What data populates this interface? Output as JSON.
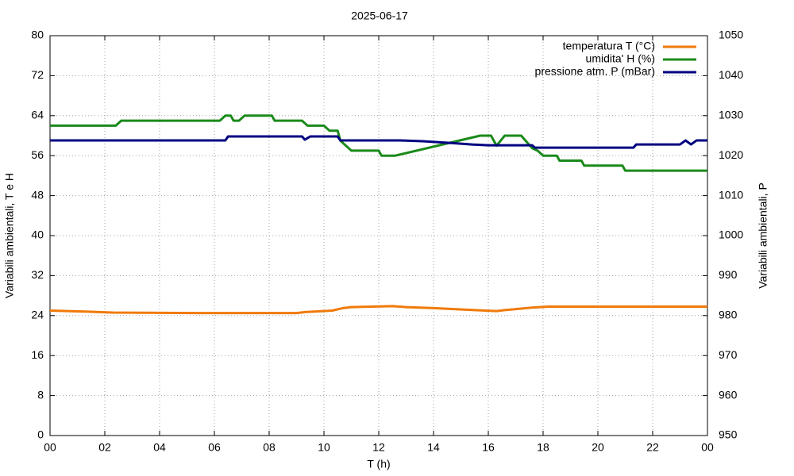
{
  "chart_data": {
    "type": "line",
    "title": "2025-06-17",
    "x_label": "T (h)",
    "y_label": "Variabili ambientali, T e H",
    "y2_label": "Variabili ambientali, P",
    "xlim": [
      0,
      24
    ],
    "xticks": [
      {
        "value": 0,
        "label": "00"
      },
      {
        "value": 2,
        "label": "02"
      },
      {
        "value": 4,
        "label": "04"
      },
      {
        "value": 6,
        "label": "06"
      },
      {
        "value": 8,
        "label": "08"
      },
      10,
      12,
      14,
      16,
      18,
      20,
      22,
      {
        "value": 24,
        "label": "00"
      }
    ],
    "ylim": [
      0,
      80
    ],
    "yticks": [
      0,
      8,
      16,
      24,
      32,
      40,
      48,
      56,
      64,
      72,
      80
    ],
    "y2lim": [
      950,
      1050
    ],
    "y2ticks": [
      950,
      960,
      970,
      980,
      990,
      1000,
      1010,
      1020,
      1030,
      1040,
      1050
    ],
    "grid": true,
    "legend": "top-right",
    "series": [
      {
        "name": "temperatura T (°C)",
        "color": "#f07a0a",
        "x": [
          0,
          1.3,
          2.3,
          5.4,
          9.0,
          9.3,
          10.3,
          10.7,
          11.0,
          12.5,
          13.0,
          14.0,
          15.5,
          16.3,
          16.6,
          17.6,
          18.2,
          24
        ],
        "values": [
          25.0,
          24.8,
          24.6,
          24.5,
          24.5,
          24.7,
          25.0,
          25.5,
          25.7,
          25.9,
          25.7,
          25.5,
          25.1,
          24.9,
          25.1,
          25.6,
          25.8,
          25.8
        ]
      },
      {
        "name": "umidita' H (%)",
        "color": "#1a8a1a",
        "x": [
          0,
          2.4,
          2.6,
          6.2,
          6.4,
          6.6,
          6.7,
          6.9,
          7.1,
          8.1,
          8.2,
          9.2,
          9.4,
          10.0,
          10.2,
          10.5,
          10.6,
          11.0,
          12.0,
          12.1,
          12.6,
          15.7,
          16.1,
          16.3,
          16.6,
          17.2,
          17.6,
          17.8,
          18.0,
          18.5,
          18.6,
          19.4,
          19.5,
          20.9,
          21.0,
          24
        ],
        "values": [
          62,
          62,
          63,
          63,
          64,
          64,
          63,
          63,
          64,
          64,
          63,
          63,
          62,
          62,
          61,
          61,
          59,
          57,
          57,
          56,
          56,
          60,
          60,
          58,
          60,
          60,
          57.5,
          57,
          56,
          56,
          55,
          55,
          54,
          54,
          53,
          53
        ]
      },
      {
        "name": "pressione atm. P (mBar)",
        "color": "#000080",
        "axis": "y2",
        "x": [
          0,
          6.4,
          6.5,
          9.2,
          9.3,
          9.5,
          10.5,
          10.6,
          12.8,
          13.6,
          14.6,
          15.4,
          16.0,
          17.6,
          17.7,
          21.3,
          21.4,
          23.0,
          23.2,
          23.4,
          23.6,
          24
        ],
        "values": [
          1023.8,
          1023.8,
          1024.8,
          1024.8,
          1024.0,
          1024.8,
          1024.8,
          1023.8,
          1023.8,
          1023.6,
          1023.2,
          1022.8,
          1022.6,
          1022.6,
          1022.0,
          1022.0,
          1022.8,
          1022.8,
          1023.8,
          1022.8,
          1023.8,
          1023.8
        ]
      }
    ]
  }
}
